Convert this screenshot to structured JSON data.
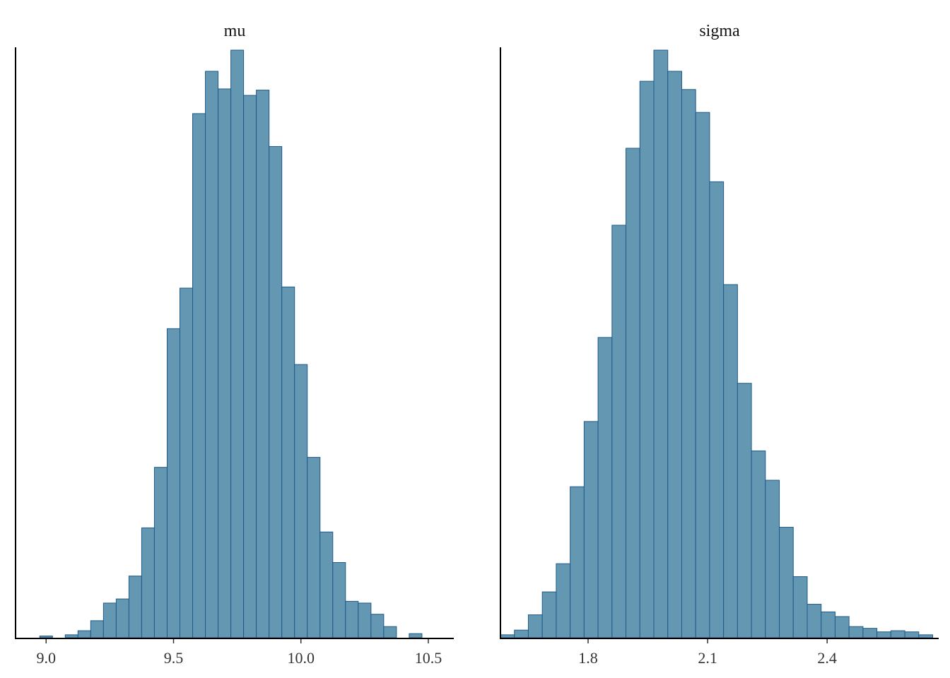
{
  "chart_data": [
    {
      "type": "bar",
      "title": "mu",
      "xlabel": "",
      "ylabel": "",
      "bin_start": 8.975,
      "bin_width": 0.05,
      "values": [
        0.3,
        0,
        0.5,
        1.2,
        2.9,
        5.9,
        6.6,
        10.5,
        18.7,
        29.0,
        52.6,
        59.5,
        89.2,
        96.4,
        93.4,
        100,
        92.3,
        93.2,
        83.6,
        59.7,
        46.5,
        30.7,
        18.0,
        12.8,
        6.2,
        5.9,
        4.0,
        1.9,
        0,
        0.7
      ],
      "xlim": [
        8.88,
        10.6
      ],
      "ylim": [
        0,
        100
      ],
      "xticks": [
        9.0,
        9.5,
        10.0,
        10.5
      ],
      "xtick_labels": [
        "9.0",
        "9.5",
        "10.0",
        "10.5"
      ],
      "fill": "#6497b1",
      "edge": "#1e5a8a"
    },
    {
      "type": "bar",
      "title": "sigma",
      "xlabel": "",
      "ylabel": "",
      "bin_start": 1.58,
      "bin_width": 0.035,
      "values": [
        0.5,
        1.3,
        3.9,
        7.8,
        12.6,
        25.7,
        36.8,
        51.1,
        70.2,
        83.3,
        94.7,
        100,
        96.4,
        93.3,
        89.4,
        77.6,
        60.1,
        43.3,
        31.8,
        26.8,
        18.8,
        10.4,
        5.7,
        4.4,
        3.6,
        1.9,
        1.6,
        1.0,
        1.2,
        1.0,
        0.5
      ],
      "xlim": [
        1.58,
        2.68
      ],
      "ylim": [
        0,
        100
      ],
      "xticks": [
        1.8,
        2.1,
        2.4
      ],
      "xtick_labels": [
        "1.8",
        "2.1",
        "2.4"
      ],
      "fill": "#6497b1",
      "edge": "#1e5a8a"
    }
  ]
}
